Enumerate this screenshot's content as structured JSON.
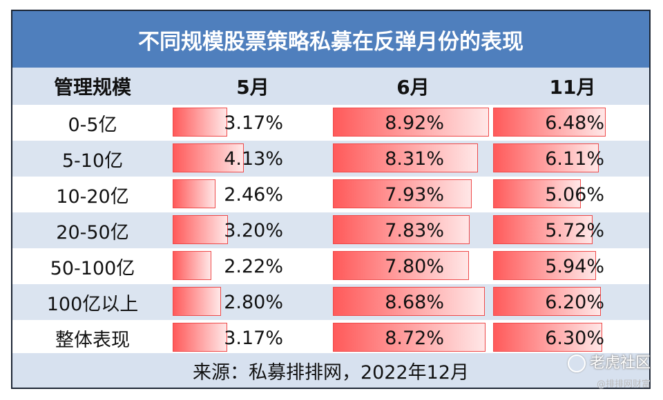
{
  "title": "不同规模股票策略私募在反弹月份的表现",
  "headers": [
    "管理规模",
    "5月",
    "6月",
    "11月"
  ],
  "rows": [
    {
      "label": "0-5亿",
      "may": "3.17%",
      "jun": "8.92%",
      "nov": "6.48%"
    },
    {
      "label": "5-10亿",
      "may": "4.13%",
      "jun": "8.31%",
      "nov": "6.11%"
    },
    {
      "label": "10-20亿",
      "may": "2.46%",
      "jun": "7.93%",
      "nov": "5.06%"
    },
    {
      "label": "20-50亿",
      "may": "3.20%",
      "jun": "7.83%",
      "nov": "5.72%"
    },
    {
      "label": "50-100亿",
      "may": "2.22%",
      "jun": "7.80%",
      "nov": "5.94%"
    },
    {
      "label": "100亿以上",
      "may": "2.80%",
      "jun": "8.68%",
      "nov": "6.20%"
    },
    {
      "label": "整体表现",
      "may": "3.17%",
      "jun": "8.72%",
      "nov": "6.30%"
    }
  ],
  "source": "来源：私募排排网，2022年12月",
  "watermark": "老虎社区",
  "watermark_sub": "@排排网财富",
  "colors": {
    "title_bg": "#4f7fbd",
    "stripe": "#dbe4f0",
    "bar": "#ff5a5a"
  }
}
